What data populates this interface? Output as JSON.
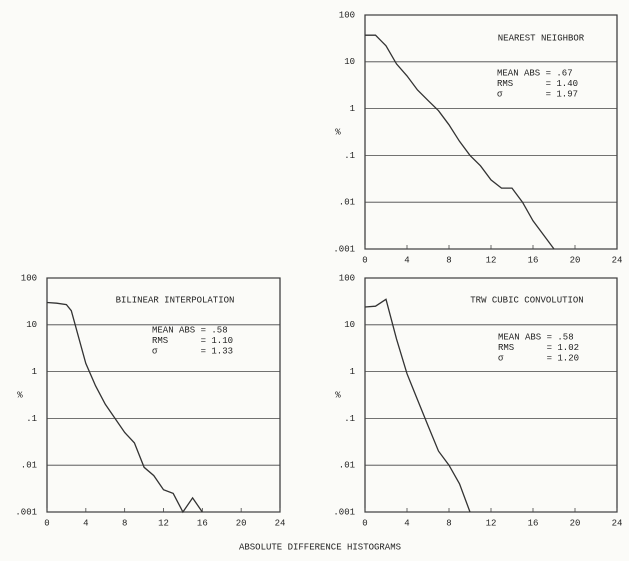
{
  "chart_data": [
    {
      "type": "line",
      "title": "NEAREST NEIGHBOR",
      "ylabel": "%",
      "ylog": true,
      "grid": true,
      "color": "#333333",
      "x": [
        0,
        1,
        2,
        3,
        4,
        5,
        6,
        7,
        8,
        9,
        10,
        11,
        12,
        13,
        14,
        15,
        16,
        17,
        18
      ],
      "values": [
        37,
        37,
        22,
        9,
        5,
        2.5,
        1.5,
        0.9,
        0.45,
        0.2,
        0.1,
        0.06,
        0.03,
        0.02,
        0.02,
        0.01,
        0.004,
        0.002,
        0.001
      ],
      "xlim": [
        0,
        24
      ],
      "xticks": [
        0,
        4,
        8,
        12,
        16,
        20,
        24
      ],
      "ylim": [
        0.001,
        100
      ],
      "yticks": [
        100,
        10,
        1,
        {
          "value": 0.1,
          "label": ".1"
        },
        {
          "value": 0.01,
          "label": ".01"
        },
        {
          "value": 0.001,
          "label": ".001"
        }
      ],
      "annotations": [
        "MEAN ABS = .67",
        "RMS      = 1.40",
        "σ        = 1.97"
      ]
    },
    {
      "type": "line",
      "title": "BILINEAR INTERPOLATION",
      "ylabel": "%",
      "ylog": true,
      "grid": true,
      "color": "#333333",
      "x": [
        0,
        1,
        2,
        2.5,
        4,
        5,
        6,
        7,
        8,
        9,
        10,
        11,
        12,
        13,
        14,
        15,
        16
      ],
      "values": [
        30,
        29,
        27,
        20,
        1.5,
        0.5,
        0.2,
        0.1,
        0.05,
        0.03,
        0.009,
        0.006,
        0.003,
        0.0025,
        0.001,
        0.002,
        0.001
      ],
      "xlim": [
        0,
        24
      ],
      "xticks": [
        0,
        4,
        8,
        12,
        16,
        20,
        24
      ],
      "ylim": [
        0.001,
        100
      ],
      "yticks": [
        100,
        10,
        1,
        {
          "value": 0.1,
          "label": ".1"
        },
        {
          "value": 0.01,
          "label": ".01"
        },
        {
          "value": 0.001,
          "label": ".001"
        }
      ],
      "annotations": [
        "MEAN ABS = .58",
        "RMS      = 1.10",
        "σ        = 1.33"
      ]
    },
    {
      "type": "line",
      "title": "TRW CUBIC CONVOLUTION",
      "ylabel": "%",
      "ylog": true,
      "grid": true,
      "color": "#333333",
      "x": [
        0,
        1,
        2,
        3,
        4,
        5,
        6,
        7,
        8,
        9,
        10
      ],
      "values": [
        24,
        25,
        35,
        5,
        0.9,
        0.25,
        0.07,
        0.02,
        0.01,
        0.004,
        0.001
      ],
      "xlim": [
        0,
        24
      ],
      "xticks": [
        0,
        4,
        8,
        12,
        16,
        20,
        24
      ],
      "ylim": [
        0.001,
        100
      ],
      "yticks": [
        100,
        10,
        1,
        {
          "value": 0.1,
          "label": ".1"
        },
        {
          "value": 0.01,
          "label": ".01"
        },
        {
          "value": 0.001,
          "label": ".001"
        }
      ],
      "annotations": [
        "MEAN ABS = .58",
        "RMS      = 1.02",
        "σ        = 1.20"
      ]
    }
  ],
  "figure_caption": "ABSOLUTE DIFFERENCE HISTOGRAMS"
}
